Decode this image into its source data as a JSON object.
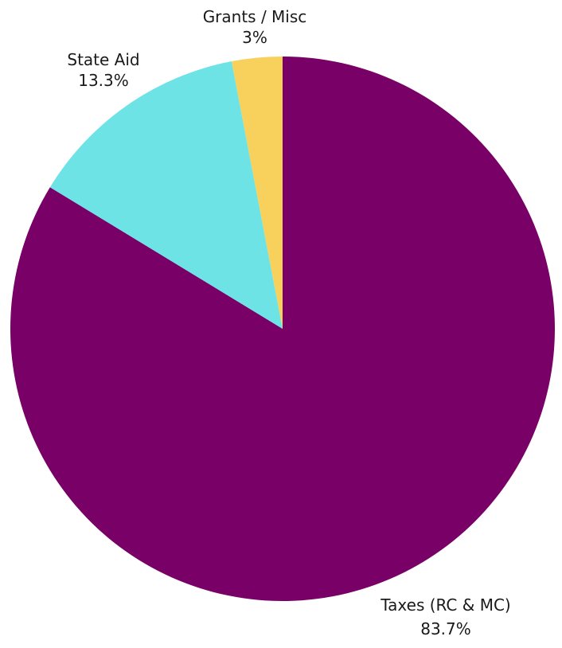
{
  "chart_data": {
    "type": "pie",
    "title": "",
    "slices": [
      {
        "label": "Taxes (RC & MC)",
        "value": 83.7,
        "value_label": "83.7%",
        "color": "#780066"
      },
      {
        "label": "State Aid",
        "value": 13.3,
        "value_label": "13.3%",
        "color": "#6EE3E6"
      },
      {
        "label": "Grants / Misc",
        "value": 3,
        "value_label": "3%",
        "color": "#F7D15C"
      }
    ],
    "start_angle_deg": 0,
    "direction": "clockwise",
    "legend": "none",
    "labels": "outside"
  }
}
